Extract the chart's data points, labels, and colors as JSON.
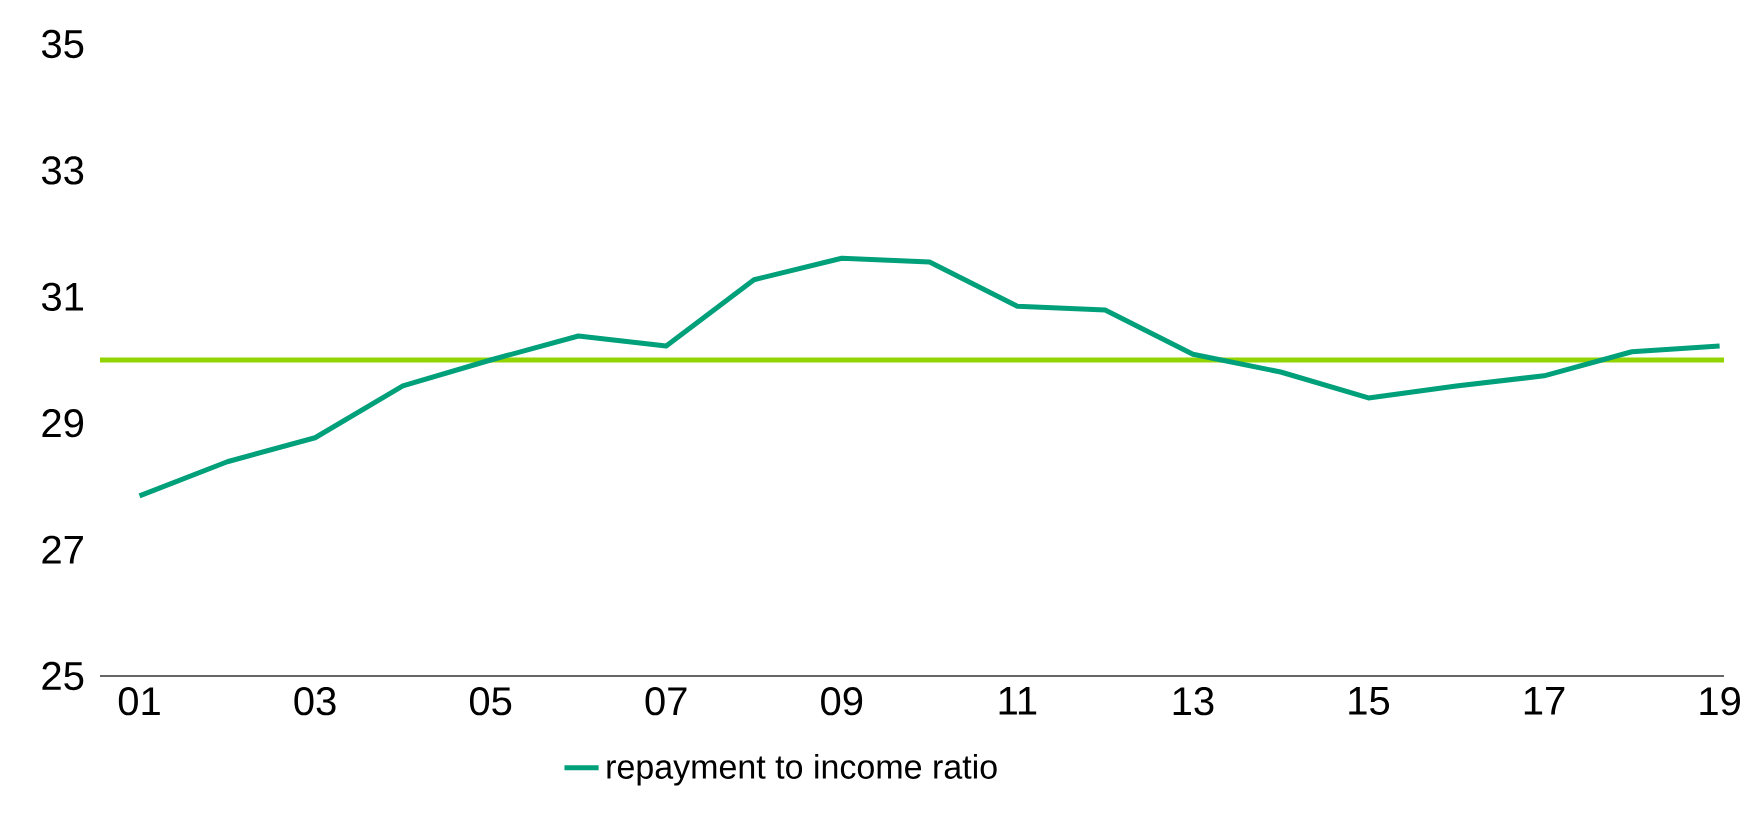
{
  "chart_data": {
    "type": "line",
    "categories": [
      "01",
      null,
      "03",
      null,
      "05",
      null,
      "07",
      null,
      "09",
      null,
      "11",
      null,
      "13",
      null,
      "15",
      null,
      "17",
      null,
      "19"
    ],
    "series": [
      {
        "name": "repayment to income ratio",
        "color": "#00a07a",
        "values": [
          27.85,
          28.39,
          28.77,
          29.59,
          30.0,
          30.38,
          30.22,
          31.27,
          31.61,
          31.55,
          30.85,
          30.79,
          30.09,
          29.81,
          29.4,
          29.59,
          29.75,
          30.13,
          30.22
        ]
      }
    ],
    "ylim": [
      25,
      35
    ],
    "yticks": [
      25,
      27,
      29,
      31,
      33,
      35
    ],
    "ref_lines": [
      {
        "axis": "y",
        "value": 30,
        "color": "#92d400"
      }
    ],
    "grid": false,
    "legend": "bottom",
    "marker": "none",
    "line_style": "solid"
  }
}
